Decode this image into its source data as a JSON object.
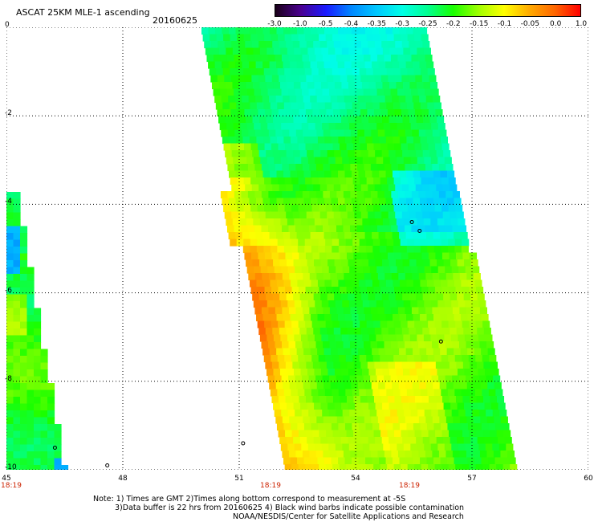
{
  "header": {
    "title": "ASCAT 25KM MLE-1 ascending",
    "date": "20160625"
  },
  "colorbar": {
    "labels": [
      "-3.0",
      "-1.0",
      "-0.5",
      "-0.4",
      "-0.35",
      "-0.3",
      "-0.25",
      "-0.2",
      "-0.15",
      "-0.1",
      "-0.05",
      "0.0",
      "1.0"
    ],
    "colors": [
      "#1a0018",
      "#4a0090",
      "#1a1aff",
      "#0088ff",
      "#00c8ff",
      "#00ffe6",
      "#00ff90",
      "#1aff00",
      "#a0ff00",
      "#ffff00",
      "#ffaa00",
      "#ff6600",
      "#ff0000"
    ]
  },
  "map": {
    "lon_ticks": [
      "45",
      "48",
      "51",
      "54",
      "57",
      "60"
    ],
    "lat_ticks": [
      "0",
      "-2",
      "-4",
      "-6",
      "-8",
      "-10"
    ],
    "time_labels": [
      "18:19",
      "18:19",
      "18:19"
    ],
    "lon_range": [
      45,
      60
    ],
    "lat_range": [
      -10,
      0
    ],
    "islands": [
      {
        "lon": 55.45,
        "lat": -4.4
      },
      {
        "lon": 55.65,
        "lat": -4.6
      },
      {
        "lon": 56.2,
        "lat": -7.1
      },
      {
        "lon": 46.25,
        "lat": -9.5
      },
      {
        "lon": 51.1,
        "lat": -9.4
      },
      {
        "lon": 47.6,
        "lat": -9.9
      }
    ]
  },
  "notes": {
    "line1": "Note: 1) Times are GMT 2)Times along bottom correspond to measurement at -5S",
    "line2": "3)Data buffer is 22 hrs from 20160625 4) Black wind barbs indicate possible contamination",
    "line3": "NOAA/NESDIS/Center for Satellite Applications and Research"
  }
}
